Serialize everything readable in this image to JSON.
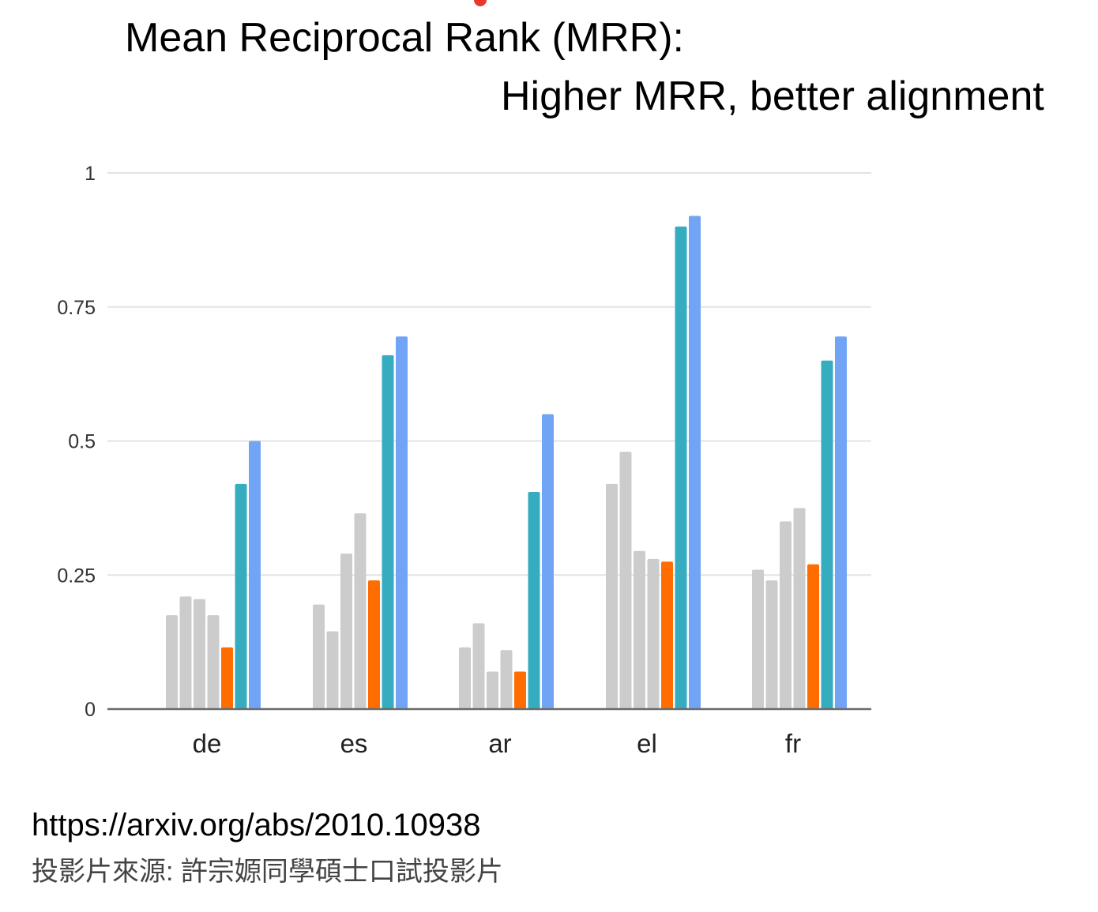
{
  "header": {
    "title": "Mean Reciprocal Rank (MRR):",
    "subtitle": "Higher MRR, better alignment"
  },
  "footer": {
    "url": "https://arxiv.org/abs/2010.10938",
    "credit": "投影片來源: 許宗嫄同學碩士口試投影片"
  },
  "colors": {
    "baseline_gray": "#cccccc",
    "orange": "#ff6d01",
    "teal": "#36acc0",
    "blue": "#72a4f6",
    "grid": "#e3e3e3",
    "axis": "#6a6a6a"
  },
  "chart_data": {
    "type": "bar",
    "categories": [
      "de",
      "es",
      "ar",
      "el",
      "fr"
    ],
    "yticks": [
      "0",
      "0.25",
      "0.5",
      "0.75",
      "1"
    ],
    "ylim": [
      0,
      1
    ],
    "grid": true,
    "legend": "none",
    "series": [
      {
        "color": "#cccccc",
        "values": [
          0.175,
          0.195,
          0.115,
          0.42,
          0.26
        ]
      },
      {
        "color": "#cccccc",
        "values": [
          0.21,
          0.145,
          0.16,
          0.48,
          0.24
        ]
      },
      {
        "color": "#cccccc",
        "values": [
          0.205,
          0.29,
          0.07,
          0.295,
          0.35
        ]
      },
      {
        "color": "#cccccc",
        "values": [
          0.175,
          0.365,
          0.11,
          0.28,
          0.375
        ]
      },
      {
        "color": "#ff6d01",
        "values": [
          0.115,
          0.24,
          0.07,
          0.275,
          0.27
        ]
      },
      {
        "color": "#36acc0",
        "values": [
          0.42,
          0.66,
          0.405,
          0.9,
          0.65
        ]
      },
      {
        "color": "#72a4f6",
        "values": [
          0.5,
          0.695,
          0.55,
          0.92,
          0.695
        ]
      }
    ]
  }
}
